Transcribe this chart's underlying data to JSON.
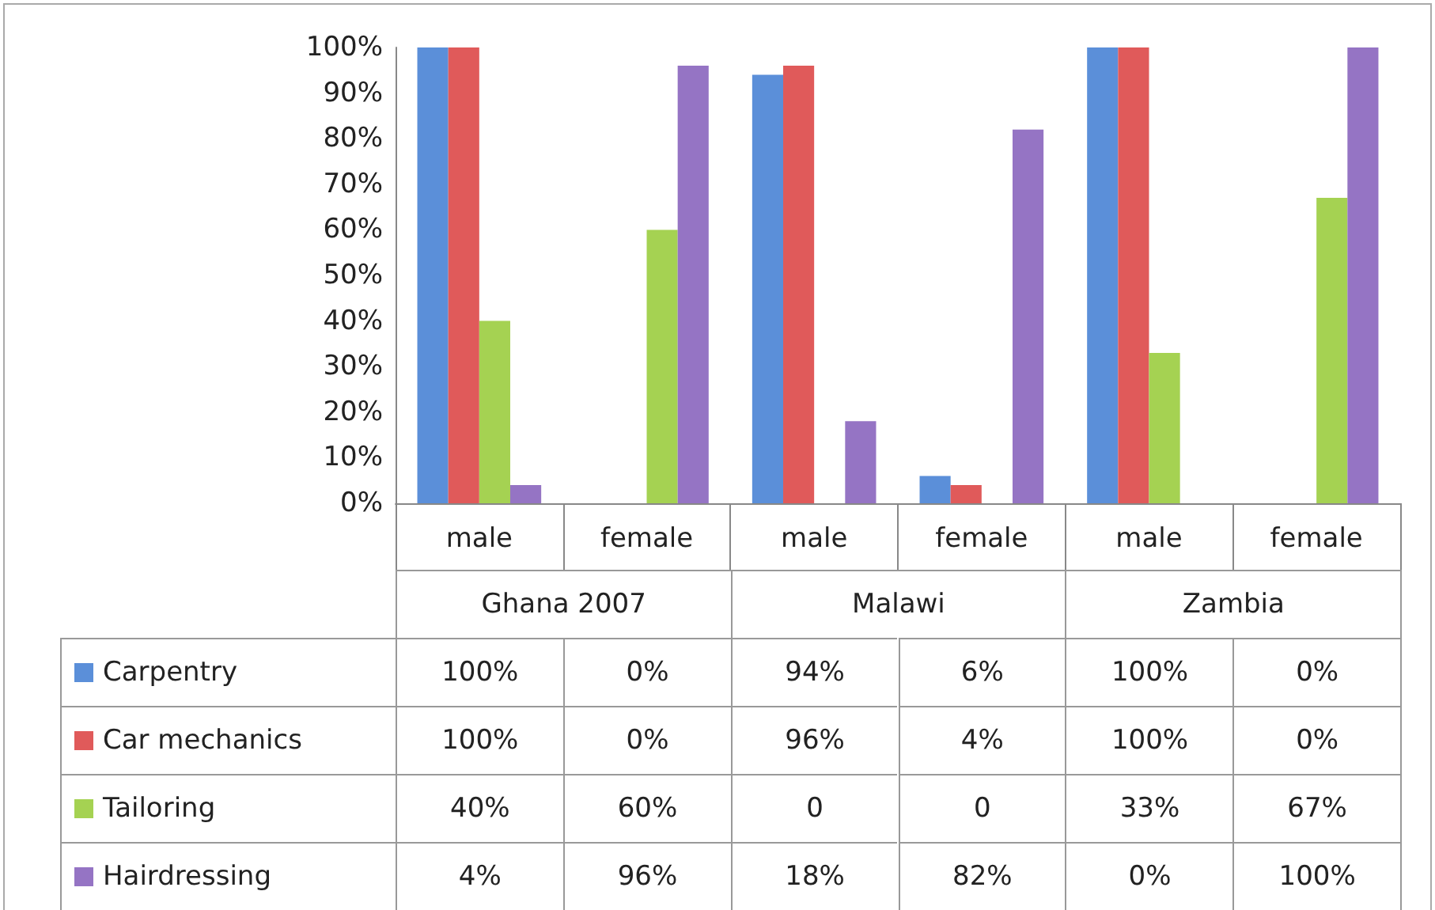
{
  "chart_data": {
    "type": "bar",
    "categories": [
      "male",
      "female",
      "male",
      "female",
      "male",
      "female"
    ],
    "annotations": [
      "Ghana 2007",
      "Malawi",
      "Zambia"
    ],
    "ylim": [
      0,
      100
    ],
    "yticks": [
      {
        "value": 0,
        "label": "0%"
      },
      {
        "value": 10,
        "label": "10%"
      },
      {
        "value": 20,
        "label": "20%"
      },
      {
        "value": 30,
        "label": "30%"
      },
      {
        "value": 40,
        "label": "40%"
      },
      {
        "value": 50,
        "label": "50%"
      },
      {
        "value": 60,
        "label": "60%"
      },
      {
        "value": 70,
        "label": "70%"
      },
      {
        "value": 80,
        "label": "80%"
      },
      {
        "value": 90,
        "label": "90%"
      },
      {
        "value": 100,
        "label": "100%"
      }
    ],
    "grid": false,
    "legend": "bottom left",
    "series": [
      {
        "name": "Carpentry",
        "color": "#5b8fd9",
        "values": [
          100,
          0,
          94,
          6,
          100,
          0
        ],
        "value_labels": [
          "100%",
          "0%",
          "94%",
          "6%",
          "100%",
          "0%"
        ]
      },
      {
        "name": "Car mechanics",
        "color": "#e05a5a",
        "values": [
          100,
          0,
          96,
          4,
          100,
          0
        ],
        "value_labels": [
          "100%",
          "0%",
          "96%",
          "4%",
          "100%",
          "0%"
        ]
      },
      {
        "name": "Tailoring",
        "color": "#a5d252",
        "values": [
          40,
          60,
          0,
          0,
          33,
          67
        ],
        "value_labels": [
          "40%",
          "60%",
          "0",
          "0",
          "33%",
          "67%"
        ]
      },
      {
        "name": "Hairdressing",
        "color": "#9574c4",
        "values": [
          4,
          96,
          18,
          82,
          0,
          100
        ],
        "value_labels": [
          "4%",
          "96%",
          "18%",
          "82%",
          "0%",
          "100%"
        ]
      }
    ]
  }
}
